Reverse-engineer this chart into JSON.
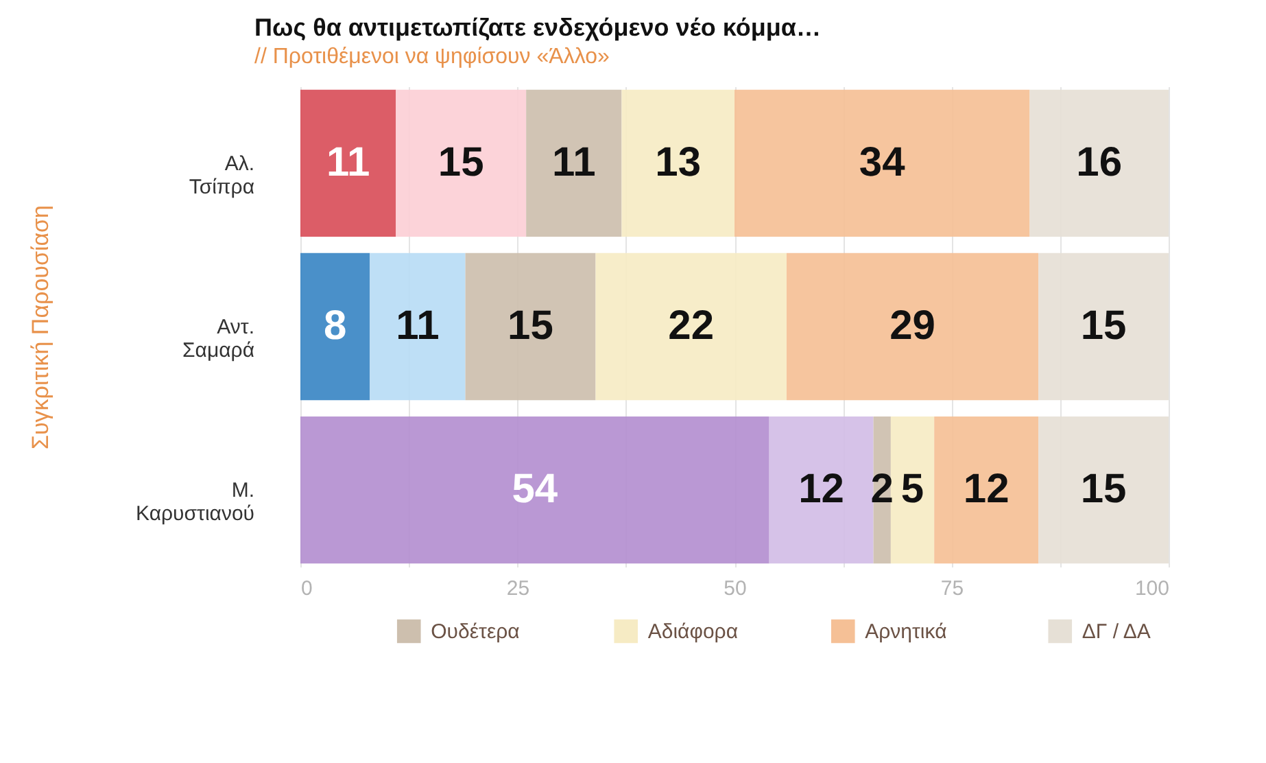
{
  "chart_data": {
    "type": "bar",
    "orientation": "horizontal",
    "stacked": true,
    "title": "Πως θα αντιμετωπίζατε ενδεχόμενο νέο κόμμα…",
    "subtitle": "// Προτιθέμενοι να ψηφίσουν «Άλλο»",
    "ylabel": "Συγκριτική Παρουσίαση",
    "categories": [
      "Αλ. Τσίπρα",
      "Αντ. Σαμαρά",
      "Μ. Καρυστιανού"
    ],
    "series": [
      {
        "colors": [
          "#d94f5a",
          "#3b87c4",
          "#b48fd0"
        ],
        "values": [
          11,
          8,
          54
        ]
      },
      {
        "colors": [
          "#fccfd6",
          "#b9dcf5",
          "#d3bde6"
        ],
        "values": [
          15,
          11,
          12
        ]
      },
      {
        "name": "Ουδέτερα",
        "color": "#cdbfae",
        "values": [
          11,
          15,
          2
        ]
      },
      {
        "name": "Αδιάφορα",
        "color": "#f6ebc4",
        "values": [
          13,
          22,
          5
        ]
      },
      {
        "name": "Αρνητικά",
        "color": "#f5c096",
        "values": [
          34,
          29,
          12
        ]
      },
      {
        "name": "ΔΓ / ΔΑ",
        "color": "#e6e0d6",
        "values": [
          16,
          15,
          15
        ]
      }
    ],
    "xlim": [
      0,
      100
    ],
    "xticks": [
      0,
      {
        "value": 12.5,
        "label": null
      },
      25,
      {
        "value": 37.5,
        "label": null
      },
      50,
      {
        "value": 62.5,
        "label": null
      },
      75,
      {
        "value": 87.5,
        "label": null
      },
      100
    ],
    "grid": "x",
    "data_labels": true,
    "legend": "bottom"
  }
}
